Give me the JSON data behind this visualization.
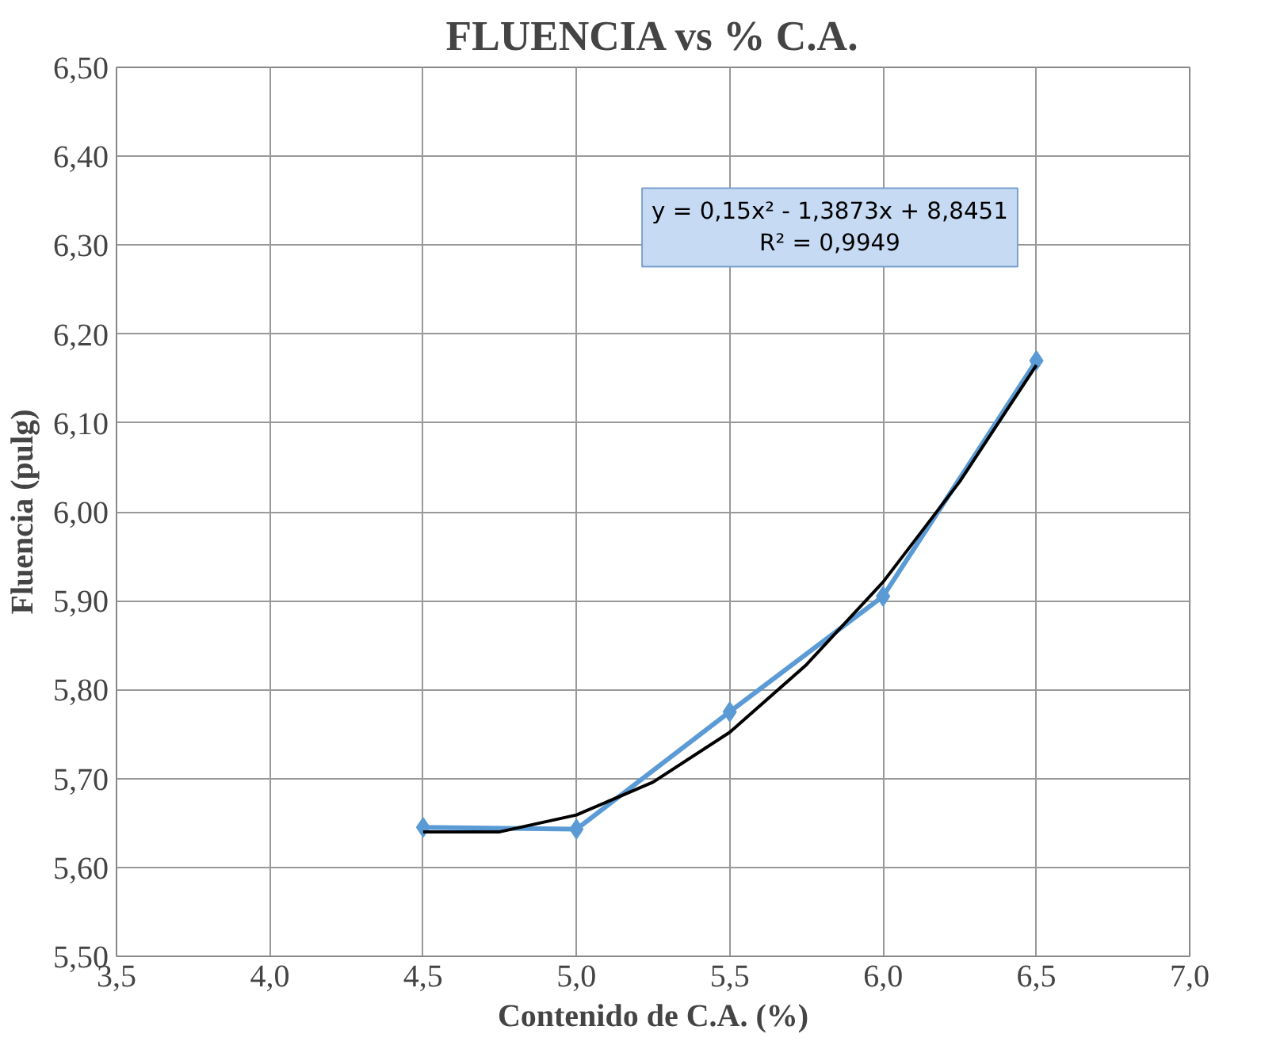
{
  "chart_data": {
    "type": "line",
    "title": "FLUENCIA vs % C.A.",
    "xlabel": "Contenido de C.A. (%)",
    "ylabel": "Fluencia (pulg)",
    "xlim": [
      3.5,
      7.0
    ],
    "ylim": [
      5.5,
      6.5
    ],
    "xticks": [
      {
        "value": 3.5,
        "label": "3,5"
      },
      {
        "value": 4.0,
        "label": "4,0"
      },
      {
        "value": 4.5,
        "label": "4,5"
      },
      {
        "value": 5.0,
        "label": "5,0"
      },
      {
        "value": 5.5,
        "label": "5,5"
      },
      {
        "value": 6.0,
        "label": "6,0"
      },
      {
        "value": 6.5,
        "label": "6,5"
      },
      {
        "value": 7.0,
        "label": "7,0"
      }
    ],
    "yticks": [
      {
        "value": 5.5,
        "label": "5,50"
      },
      {
        "value": 5.6,
        "label": "5,60"
      },
      {
        "value": 5.7,
        "label": "5,70"
      },
      {
        "value": 5.8,
        "label": "5,80"
      },
      {
        "value": 5.9,
        "label": "5,90"
      },
      {
        "value": 6.0,
        "label": "6,00"
      },
      {
        "value": 6.1,
        "label": "6,10"
      },
      {
        "value": 6.2,
        "label": "6,20"
      },
      {
        "value": 6.3,
        "label": "6,30"
      },
      {
        "value": 6.4,
        "label": "6,40"
      },
      {
        "value": 6.5,
        "label": "6,50"
      }
    ],
    "grid": true,
    "series": [
      {
        "marker": "diamond",
        "color": "#5b9bd5",
        "x": [
          4.5,
          5.0,
          5.5,
          6.0,
          6.5
        ],
        "values": [
          5.645,
          5.643,
          5.775,
          5.905,
          6.17
        ]
      },
      {
        "marker": "none",
        "color": "#000000",
        "x": [
          4.5,
          4.75,
          5.0,
          5.25,
          5.5,
          5.75,
          6.0,
          6.25,
          6.5
        ],
        "values": [
          5.64,
          5.64,
          5.659,
          5.696,
          5.752,
          5.828,
          5.921,
          6.034,
          6.165
        ]
      }
    ],
    "annotations": [
      "y = 0,15x² - 1,3873x + 8,8451\nR² = 0,9949"
    ]
  }
}
